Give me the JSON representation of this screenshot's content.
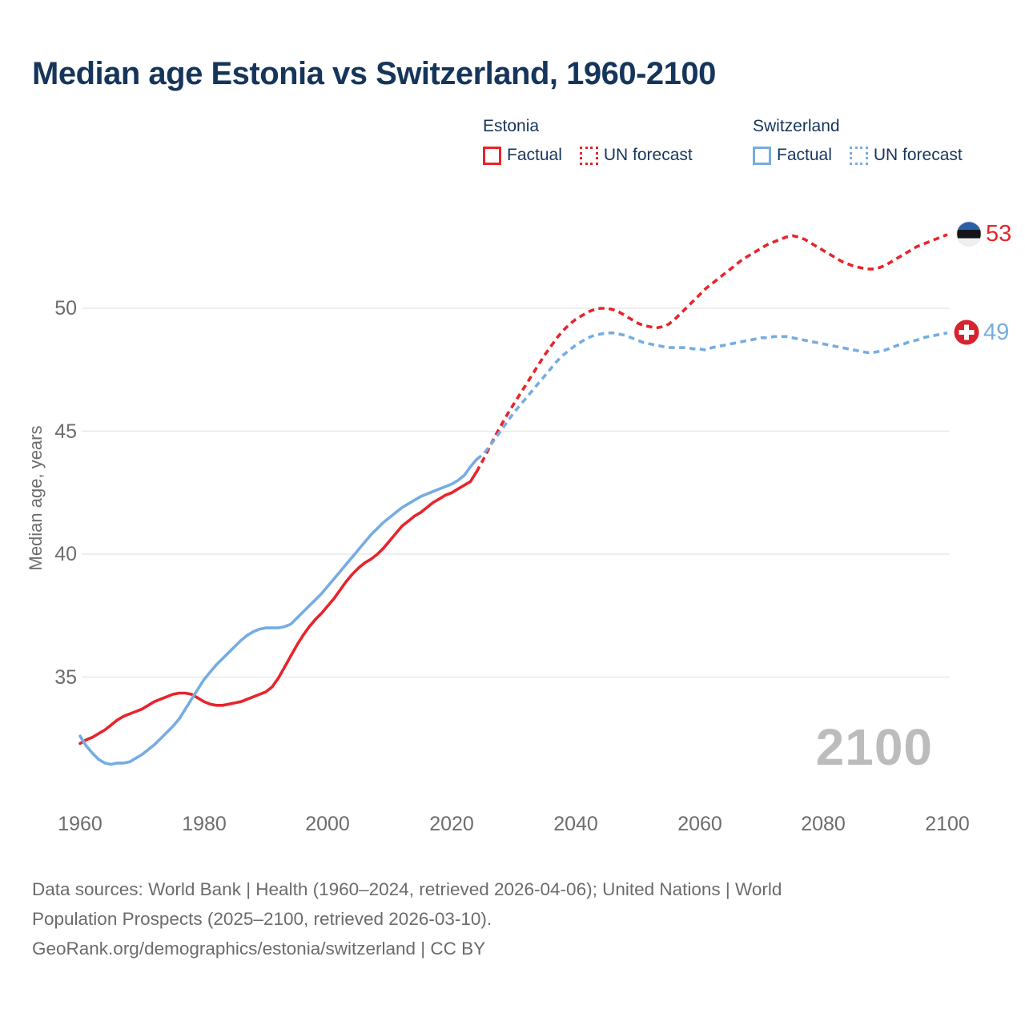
{
  "header": {
    "title": "Median age Estonia vs Switzerland, 1960-2100"
  },
  "legend": {
    "groups": [
      {
        "label": "Estonia",
        "color": "#e8242b",
        "items": [
          {
            "label": "Factual",
            "style": "solid"
          },
          {
            "label": "UN forecast",
            "style": "dashed"
          }
        ]
      },
      {
        "label": "Switzerland",
        "color": "#76ace2",
        "items": [
          {
            "label": "Factual",
            "style": "solid"
          },
          {
            "label": "UN forecast",
            "style": "dashed"
          }
        ]
      }
    ]
  },
  "axes": {
    "y_title": "Median age, years"
  },
  "watermark": "2100",
  "end_labels": [
    {
      "series": "Estonia",
      "value": "53",
      "flag": "estonia-flag",
      "color": "#e8242b"
    },
    {
      "series": "Switzerland",
      "value": "49",
      "flag": "switzerland-flag",
      "color": "#76ace2"
    }
  ],
  "footer": {
    "lines": [
      "Data sources: World Bank | Health (1960–2024, retrieved 2026-04-06); United Nations | World",
      "Population Prospects (2025–2100, retrieved 2026-03-10).",
      "GeoRank.org/demographics/estonia/switzerland | CC BY"
    ]
  },
  "colors": {
    "title": "#16355b",
    "estonia_line": "#e8242b",
    "switzerland_line": "#76ace2",
    "gridline": "#e8e8e8",
    "tick_text": "#6d6d6d",
    "watermark": "#bcbcbc",
    "estonia_flag_blue": "#2a5fa8",
    "swiss_flag_red": "#d8232e"
  },
  "chart_data": {
    "type": "line",
    "title": "Median age Estonia vs Switzerland, 1960-2100",
    "xlabel": "",
    "ylabel": "Median age, years",
    "xlim": [
      1960,
      2100
    ],
    "ylim": [
      30.5,
      54
    ],
    "y_ticks": [
      35,
      40,
      45,
      50
    ],
    "x_ticks": [
      1960,
      1980,
      2000,
      2020,
      2040,
      2060,
      2080,
      2100
    ],
    "grid": "horizontal-only",
    "legend_position": "top-right",
    "series": [
      {
        "name": "Estonia Factual",
        "id": "estonia-factual",
        "color": "#e8242b",
        "style": "solid",
        "x_start": 1960,
        "x_step": 1,
        "values": [
          32.3,
          32.45,
          32.55,
          32.7,
          32.85,
          33.05,
          33.25,
          33.4,
          33.5,
          33.6,
          33.7,
          33.85,
          34.0,
          34.1,
          34.2,
          34.3,
          34.35,
          34.35,
          34.3,
          34.15,
          34.0,
          33.9,
          33.85,
          33.85,
          33.9,
          33.95,
          34.0,
          34.1,
          34.2,
          34.3,
          34.4,
          34.6,
          34.95,
          35.4,
          35.85,
          36.3,
          36.7,
          37.05,
          37.35,
          37.6,
          37.9,
          38.2,
          38.55,
          38.9,
          39.2,
          39.45,
          39.65,
          39.8,
          40.0,
          40.25,
          40.55,
          40.85,
          41.15,
          41.35,
          41.55,
          41.7,
          41.9,
          42.1,
          42.25,
          42.4,
          42.5,
          42.65,
          42.8,
          42.95,
          43.35
        ]
      },
      {
        "name": "Estonia UN forecast",
        "id": "estonia-forecast",
        "color": "#e8242b",
        "style": "dashed",
        "x_start": 2024,
        "x_step": 1,
        "values": [
          43.35,
          43.8,
          44.3,
          44.8,
          45.25,
          45.7,
          46.1,
          46.5,
          46.9,
          47.3,
          47.7,
          48.1,
          48.45,
          48.8,
          49.1,
          49.35,
          49.55,
          49.7,
          49.85,
          49.95,
          50.0,
          50.0,
          49.95,
          49.85,
          49.7,
          49.55,
          49.4,
          49.3,
          49.25,
          49.2,
          49.25,
          49.35,
          49.55,
          49.8,
          50.05,
          50.3,
          50.55,
          50.8,
          51.0,
          51.2,
          51.4,
          51.6,
          51.8,
          52.0,
          52.15,
          52.3,
          52.45,
          52.6,
          52.7,
          52.8,
          52.9,
          52.95,
          52.9,
          52.8,
          52.65,
          52.5,
          52.35,
          52.2,
          52.05,
          51.9,
          51.8,
          51.7,
          51.65,
          51.6,
          51.6,
          51.65,
          51.75,
          51.9,
          52.05,
          52.2,
          52.35,
          52.5,
          52.6,
          52.7,
          52.8,
          52.9,
          53.0
        ]
      },
      {
        "name": "Switzerland Factual",
        "id": "switzerland-factual",
        "color": "#76ace2",
        "style": "solid",
        "x_start": 1960,
        "x_step": 1,
        "values": [
          32.6,
          32.2,
          31.9,
          31.65,
          31.5,
          31.45,
          31.5,
          31.5,
          31.55,
          31.7,
          31.85,
          32.05,
          32.25,
          32.5,
          32.75,
          33.0,
          33.3,
          33.7,
          34.1,
          34.5,
          34.9,
          35.2,
          35.5,
          35.75,
          36.0,
          36.25,
          36.5,
          36.7,
          36.85,
          36.95,
          37.0,
          37.0,
          37.0,
          37.05,
          37.15,
          37.4,
          37.65,
          37.9,
          38.15,
          38.4,
          38.7,
          39.0,
          39.3,
          39.6,
          39.9,
          40.2,
          40.5,
          40.8,
          41.05,
          41.3,
          41.5,
          41.7,
          41.9,
          42.05,
          42.2,
          42.35,
          42.45,
          42.55,
          42.65,
          42.75,
          42.85,
          43.0,
          43.2,
          43.55,
          43.85
        ]
      },
      {
        "name": "Switzerland UN forecast",
        "id": "switzerland-forecast",
        "color": "#76ace2",
        "style": "dashed",
        "x_start": 2024,
        "x_step": 1,
        "values": [
          43.85,
          44.05,
          44.35,
          44.7,
          45.05,
          45.4,
          45.75,
          46.05,
          46.35,
          46.65,
          46.95,
          47.25,
          47.55,
          47.85,
          48.1,
          48.3,
          48.5,
          48.65,
          48.8,
          48.9,
          48.95,
          49.0,
          49.0,
          48.95,
          48.9,
          48.8,
          48.7,
          48.6,
          48.55,
          48.5,
          48.45,
          48.4,
          48.4,
          48.4,
          48.4,
          48.35,
          48.35,
          48.3,
          48.4,
          48.45,
          48.5,
          48.55,
          48.6,
          48.65,
          48.7,
          48.75,
          48.8,
          48.8,
          48.85,
          48.85,
          48.85,
          48.8,
          48.75,
          48.7,
          48.65,
          48.6,
          48.55,
          48.5,
          48.45,
          48.4,
          48.35,
          48.3,
          48.25,
          48.2,
          48.2,
          48.25,
          48.3,
          48.4,
          48.5,
          48.55,
          48.65,
          48.7,
          48.8,
          48.85,
          48.9,
          48.95,
          49.0
        ]
      }
    ],
    "end_annotations": [
      {
        "series": "Estonia",
        "year": 2100,
        "value": 53,
        "flag": "estonia"
      },
      {
        "series": "Switzerland",
        "year": 2100,
        "value": 49,
        "flag": "switzerland"
      }
    ]
  }
}
